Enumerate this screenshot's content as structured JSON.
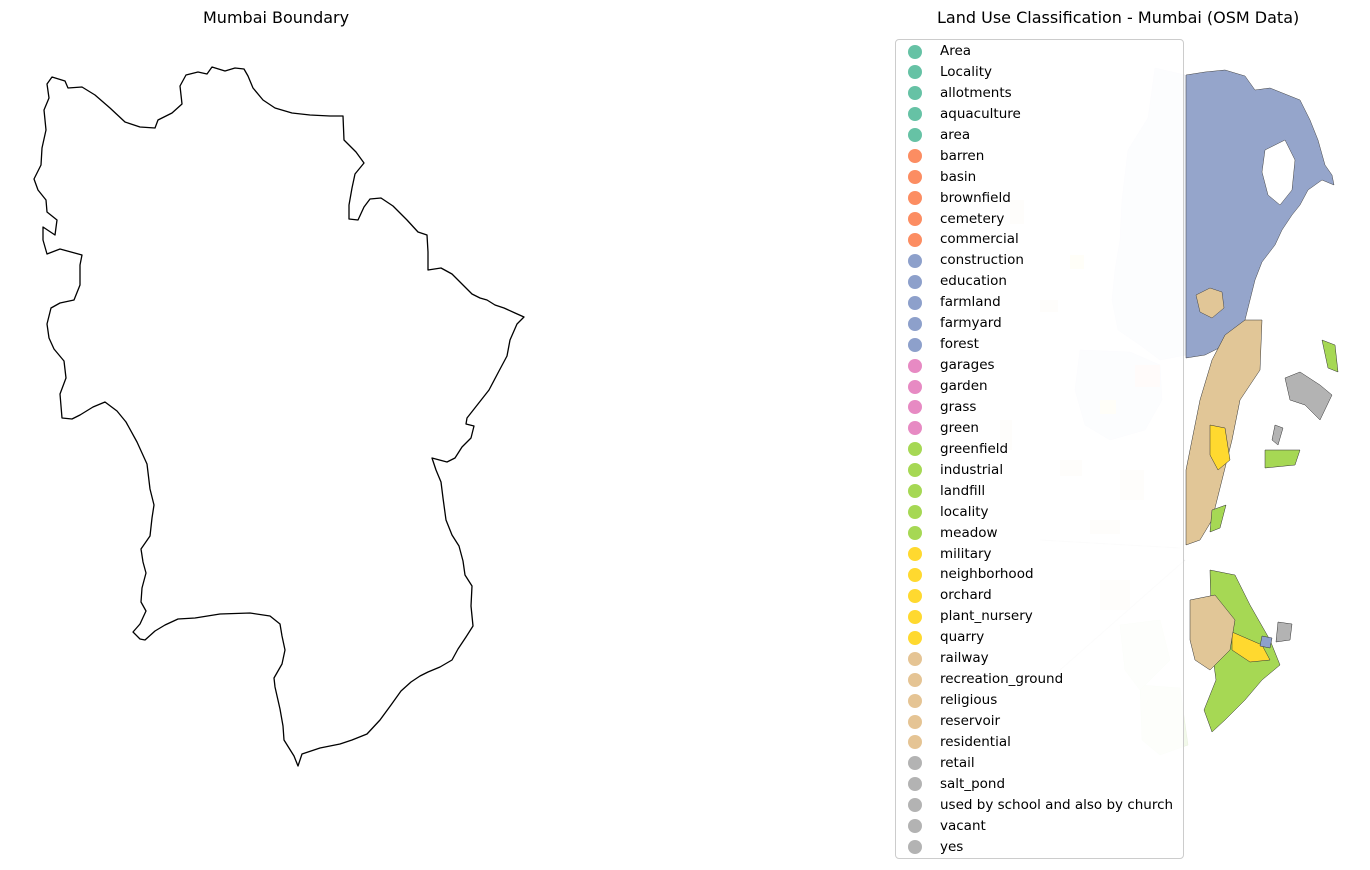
{
  "left_panel": {
    "title": "Mumbai Boundary"
  },
  "right_panel": {
    "title": "Land Use Classification - Mumbai (OSM Data)"
  },
  "colors": {
    "teal": "#66c2a5",
    "orange": "#fc8d62",
    "blue": "#8da0cb",
    "pink": "#e78ac3",
    "green": "#a6d854",
    "yellow": "#ffd92f",
    "tan": "#e5c494",
    "gray": "#b3b3b3",
    "boundary": "#000000"
  },
  "legend": [
    {
      "label": "Area",
      "color": "#66c2a5"
    },
    {
      "label": "Locality",
      "color": "#66c2a5"
    },
    {
      "label": "allotments",
      "color": "#66c2a5"
    },
    {
      "label": "aquaculture",
      "color": "#66c2a5"
    },
    {
      "label": "area",
      "color": "#66c2a5"
    },
    {
      "label": "barren",
      "color": "#fc8d62"
    },
    {
      "label": "basin",
      "color": "#fc8d62"
    },
    {
      "label": "brownfield",
      "color": "#fc8d62"
    },
    {
      "label": "cemetery",
      "color": "#fc8d62"
    },
    {
      "label": "commercial",
      "color": "#fc8d62"
    },
    {
      "label": "construction",
      "color": "#8da0cb"
    },
    {
      "label": "education",
      "color": "#8da0cb"
    },
    {
      "label": "farmland",
      "color": "#8da0cb"
    },
    {
      "label": "farmyard",
      "color": "#8da0cb"
    },
    {
      "label": "forest",
      "color": "#8da0cb"
    },
    {
      "label": "garages",
      "color": "#e78ac3"
    },
    {
      "label": "garden",
      "color": "#e78ac3"
    },
    {
      "label": "grass",
      "color": "#e78ac3"
    },
    {
      "label": "green",
      "color": "#e78ac3"
    },
    {
      "label": "greenfield",
      "color": "#a6d854"
    },
    {
      "label": "industrial",
      "color": "#a6d854"
    },
    {
      "label": "landfill",
      "color": "#a6d854"
    },
    {
      "label": "locality",
      "color": "#a6d854"
    },
    {
      "label": "meadow",
      "color": "#a6d854"
    },
    {
      "label": "military",
      "color": "#ffd92f"
    },
    {
      "label": "neighborhood",
      "color": "#ffd92f"
    },
    {
      "label": "orchard",
      "color": "#ffd92f"
    },
    {
      "label": "plant_nursery",
      "color": "#ffd92f"
    },
    {
      "label": "quarry",
      "color": "#ffd92f"
    },
    {
      "label": "railway",
      "color": "#e5c494"
    },
    {
      "label": "recreation_ground",
      "color": "#e5c494"
    },
    {
      "label": "religious",
      "color": "#e5c494"
    },
    {
      "label": "reservoir",
      "color": "#e5c494"
    },
    {
      "label": "residential",
      "color": "#e5c494"
    },
    {
      "label": "retail",
      "color": "#b3b3b3"
    },
    {
      "label": "salt_pond",
      "color": "#b3b3b3"
    },
    {
      "label": "used by school and also by church",
      "color": "#b3b3b3"
    },
    {
      "label": "vacant",
      "color": "#b3b3b3"
    },
    {
      "label": "yes",
      "color": "#b3b3b3"
    }
  ]
}
